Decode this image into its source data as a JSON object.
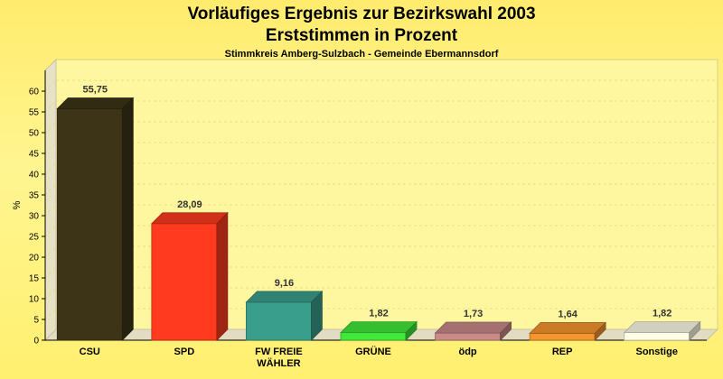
{
  "chart_data": {
    "type": "bar",
    "title": "Vorläufiges Ergebnis zur Bezirkswahl 2003",
    "title_line2": "Erststimmen in Prozent",
    "subtitle": "Stimmkreis Amberg-Sulzbach - Gemeinde Ebermannsdorf",
    "ylabel": "%",
    "xlabel": "",
    "ylim": [
      0,
      65
    ],
    "yticks": [
      "0",
      "5",
      "10",
      "15",
      "20",
      "25",
      "30",
      "35",
      "40",
      "45",
      "50",
      "55",
      "60"
    ],
    "grid": true,
    "categories": [
      [
        "CSU"
      ],
      [
        "SPD"
      ],
      [
        "FW FREIE",
        "WÄHLER"
      ],
      [
        "GRÜNE"
      ],
      [
        "ödp"
      ],
      [
        "REP"
      ],
      [
        "Sonstige"
      ]
    ],
    "values": [
      55.75,
      28.09,
      9.16,
      1.82,
      1.73,
      1.64,
      1.82
    ],
    "value_labels": [
      "55,75",
      "28,09",
      "9,16",
      "1,82",
      "1,73",
      "1,64",
      "1,82"
    ],
    "colors": [
      "#3d3418",
      "#ff3a1e",
      "#3a9e8c",
      "#3fe83a",
      "#c98a88",
      "#f7962e",
      "#fffde8"
    ]
  }
}
